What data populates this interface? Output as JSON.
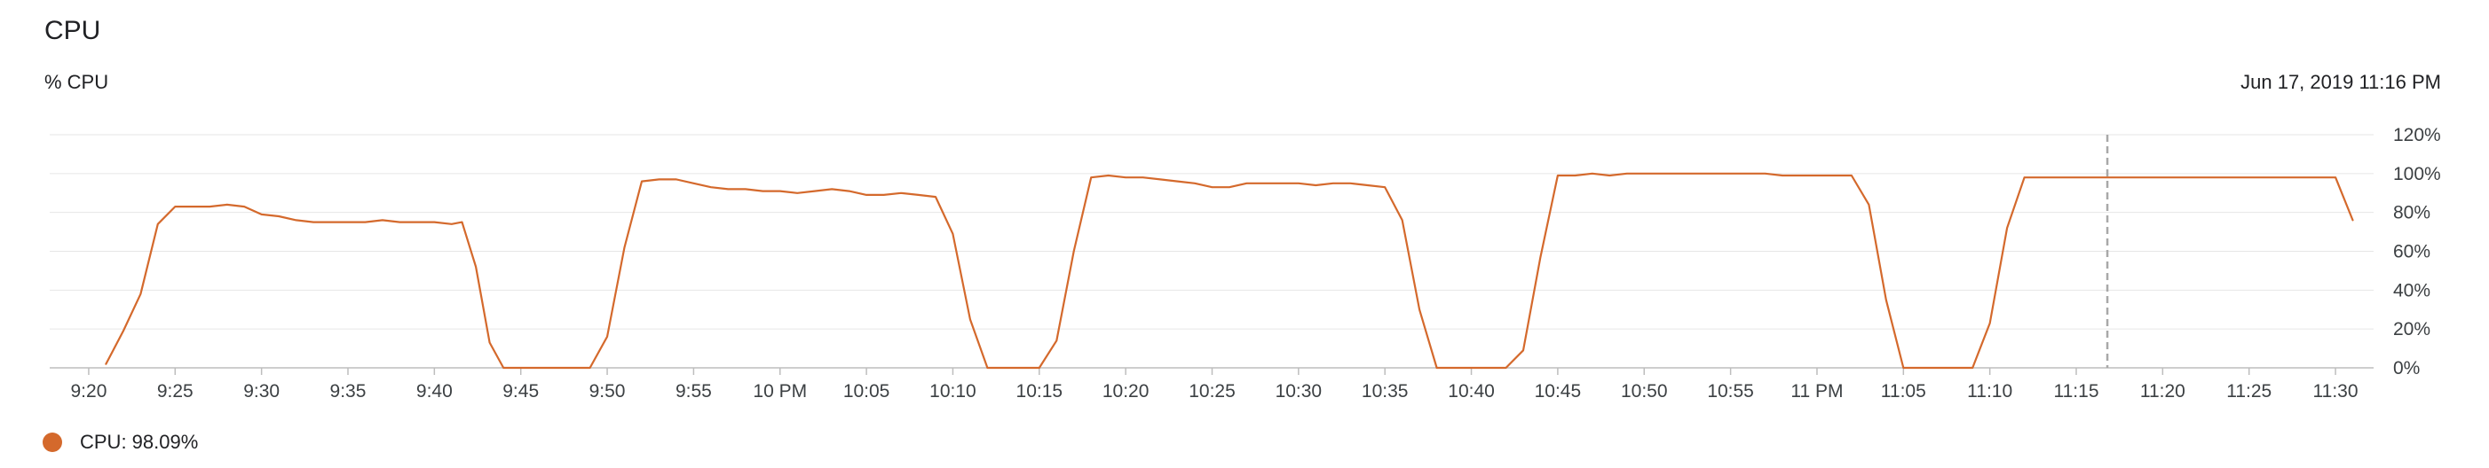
{
  "title": "CPU",
  "subtitle": "% CPU",
  "timestamp": "Jun 17, 2019 11:16 PM",
  "legend": {
    "label": "CPU: 98.09%"
  },
  "colors": {
    "series": "#D4692C",
    "grid": "#e6e6e6",
    "axis": "#bdbdbd",
    "cursor": "#a8a8a8"
  },
  "chart_data": {
    "type": "line",
    "ylabel": "% CPU",
    "ylim": [
      0,
      120
    ],
    "y_ticks": [
      "0%",
      "20%",
      "40%",
      "60%",
      "80%",
      "100%",
      "120%"
    ],
    "x_range_minutes": [
      558,
      692
    ],
    "x_ticks": [
      {
        "m": 560,
        "label": "9:20"
      },
      {
        "m": 565,
        "label": "9:25"
      },
      {
        "m": 570,
        "label": "9:30"
      },
      {
        "m": 575,
        "label": "9:35"
      },
      {
        "m": 580,
        "label": "9:40"
      },
      {
        "m": 585,
        "label": "9:45"
      },
      {
        "m": 590,
        "label": "9:50"
      },
      {
        "m": 595,
        "label": "9:55"
      },
      {
        "m": 600,
        "label": "10 PM"
      },
      {
        "m": 605,
        "label": "10:05"
      },
      {
        "m": 610,
        "label": "10:10"
      },
      {
        "m": 615,
        "label": "10:15"
      },
      {
        "m": 620,
        "label": "10:20"
      },
      {
        "m": 625,
        "label": "10:25"
      },
      {
        "m": 630,
        "label": "10:30"
      },
      {
        "m": 635,
        "label": "10:35"
      },
      {
        "m": 640,
        "label": "10:40"
      },
      {
        "m": 645,
        "label": "10:45"
      },
      {
        "m": 650,
        "label": "10:50"
      },
      {
        "m": 655,
        "label": "10:55"
      },
      {
        "m": 660,
        "label": "11 PM"
      },
      {
        "m": 665,
        "label": "11:05"
      },
      {
        "m": 670,
        "label": "11:10"
      },
      {
        "m": 675,
        "label": "11:15"
      },
      {
        "m": 680,
        "label": "11:20"
      },
      {
        "m": 685,
        "label": "11:25"
      },
      {
        "m": 690,
        "label": "11:30"
      }
    ],
    "cursor_minute": 676.8,
    "series": [
      {
        "name": "CPU",
        "points": [
          [
            561,
            2
          ],
          [
            562,
            19
          ],
          [
            563,
            38
          ],
          [
            564,
            74
          ],
          [
            565,
            83
          ],
          [
            566,
            83
          ],
          [
            567,
            83
          ],
          [
            568,
            84
          ],
          [
            569,
            83
          ],
          [
            570,
            79
          ],
          [
            571,
            78
          ],
          [
            572,
            76
          ],
          [
            573,
            75
          ],
          [
            574,
            75
          ],
          [
            575,
            75
          ],
          [
            576,
            75
          ],
          [
            577,
            76
          ],
          [
            578,
            75
          ],
          [
            579,
            75
          ],
          [
            580,
            75
          ],
          [
            581,
            74
          ],
          [
            581.6,
            75
          ],
          [
            582.4,
            52
          ],
          [
            583.2,
            13
          ],
          [
            584,
            0
          ],
          [
            585,
            0
          ],
          [
            586,
            0
          ],
          [
            587,
            0
          ],
          [
            588,
            0
          ],
          [
            589,
            0
          ],
          [
            590,
            16
          ],
          [
            591,
            62
          ],
          [
            592,
            96
          ],
          [
            593,
            97
          ],
          [
            594,
            97
          ],
          [
            595,
            95
          ],
          [
            596,
            93
          ],
          [
            597,
            92
          ],
          [
            598,
            92
          ],
          [
            599,
            91
          ],
          [
            600,
            91
          ],
          [
            601,
            90
          ],
          [
            602,
            91
          ],
          [
            603,
            92
          ],
          [
            604,
            91
          ],
          [
            605,
            89
          ],
          [
            606,
            89
          ],
          [
            607,
            90
          ],
          [
            608,
            89
          ],
          [
            609,
            88
          ],
          [
            610,
            69
          ],
          [
            611,
            25
          ],
          [
            612,
            0
          ],
          [
            613,
            0
          ],
          [
            614,
            0
          ],
          [
            615,
            0
          ],
          [
            616,
            14
          ],
          [
            617,
            60
          ],
          [
            618,
            98
          ],
          [
            619,
            99
          ],
          [
            620,
            98
          ],
          [
            621,
            98
          ],
          [
            622,
            97
          ],
          [
            623,
            96
          ],
          [
            624,
            95
          ],
          [
            625,
            93
          ],
          [
            626,
            93
          ],
          [
            627,
            95
          ],
          [
            628,
            95
          ],
          [
            629,
            95
          ],
          [
            630,
            95
          ],
          [
            631,
            94
          ],
          [
            632,
            95
          ],
          [
            633,
            95
          ],
          [
            634,
            94
          ],
          [
            635,
            93
          ],
          [
            636,
            76
          ],
          [
            637,
            30
          ],
          [
            638,
            0
          ],
          [
            639,
            0
          ],
          [
            640,
            0
          ],
          [
            641,
            0
          ],
          [
            642,
            0
          ],
          [
            643,
            9
          ],
          [
            644,
            57
          ],
          [
            645,
            99
          ],
          [
            646,
            99
          ],
          [
            647,
            100
          ],
          [
            648,
            99
          ],
          [
            649,
            100
          ],
          [
            650,
            100
          ],
          [
            651,
            100
          ],
          [
            652,
            100
          ],
          [
            653,
            100
          ],
          [
            654,
            100
          ],
          [
            655,
            100
          ],
          [
            656,
            100
          ],
          [
            657,
            100
          ],
          [
            658,
            99
          ],
          [
            659,
            99
          ],
          [
            660,
            99
          ],
          [
            661,
            99
          ],
          [
            662,
            99
          ],
          [
            663,
            84
          ],
          [
            664,
            35
          ],
          [
            665,
            0
          ],
          [
            666,
            0
          ],
          [
            667,
            0
          ],
          [
            668,
            0
          ],
          [
            669,
            0
          ],
          [
            670,
            23
          ],
          [
            671,
            72
          ],
          [
            672,
            98
          ],
          [
            673,
            98
          ],
          [
            674,
            98
          ],
          [
            675,
            98
          ],
          [
            676,
            98
          ],
          [
            677,
            98
          ],
          [
            678,
            98
          ],
          [
            679,
            98
          ],
          [
            680,
            98
          ],
          [
            681,
            98
          ],
          [
            682,
            98
          ],
          [
            683,
            98
          ],
          [
            684,
            98
          ],
          [
            685,
            98
          ],
          [
            686,
            98
          ],
          [
            687,
            98
          ],
          [
            688,
            98
          ],
          [
            689,
            98
          ],
          [
            690,
            98
          ],
          [
            691,
            76
          ]
        ]
      }
    ]
  }
}
